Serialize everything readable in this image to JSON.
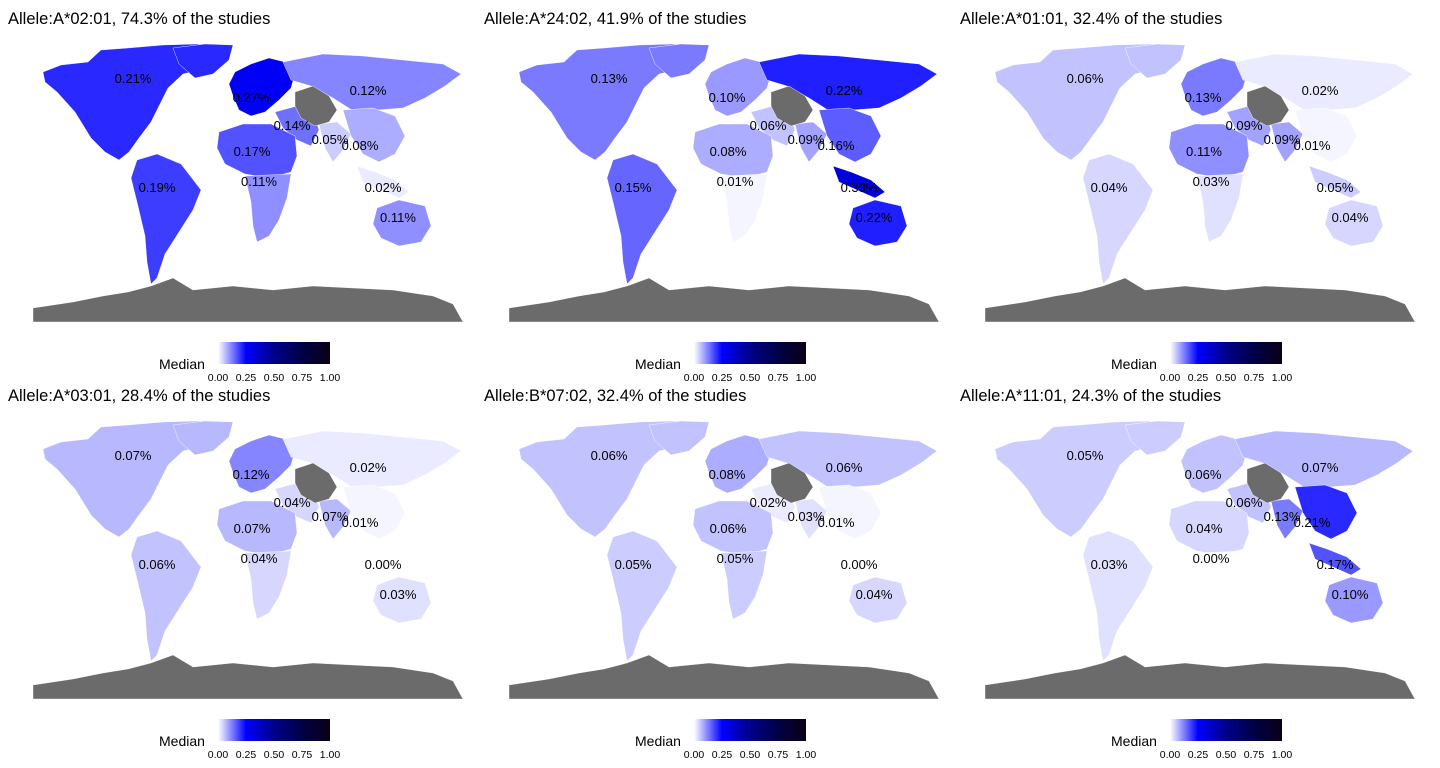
{
  "colors": {
    "scale": [
      "#ffffff",
      "#0000ff",
      "#00008b",
      "#000045",
      "#0b0016"
    ],
    "no_data": "#6b6b6b"
  },
  "legend": {
    "title": "Median",
    "ticks": [
      "0.00",
      "0.25",
      "0.50",
      "0.75",
      "1.00"
    ]
  },
  "panels": [
    {
      "title": "Allele:A*02:01, 74.3% of the studies",
      "regions": {
        "north_america": {
          "label": "0.21%",
          "value": 0.21
        },
        "south_america": {
          "label": "0.19%",
          "value": 0.19
        },
        "europe": {
          "label": "0.27%",
          "value": 0.27
        },
        "north_asia": {
          "label": "0.12%",
          "value": 0.12
        },
        "western_asia": {
          "label": "0.14%",
          "value": 0.14
        },
        "north_africa": {
          "label": "0.17%",
          "value": 0.17
        },
        "southern_africa": {
          "label": "0.11%",
          "value": 0.11
        },
        "south_asia": {
          "label": "0.05%",
          "value": 0.05
        },
        "east_asia": {
          "label": "0.08%",
          "value": 0.08
        },
        "southeast_asia": {
          "label": "0.02%",
          "value": 0.02
        },
        "oceania": {
          "label": "0.11%",
          "value": 0.11
        }
      }
    },
    {
      "title": "Allele:A*24:02, 41.9% of the studies",
      "regions": {
        "north_america": {
          "label": "0.13%",
          "value": 0.13
        },
        "south_america": {
          "label": "0.15%",
          "value": 0.15
        },
        "europe": {
          "label": "0.10%",
          "value": 0.1
        },
        "north_asia": {
          "label": "0.22%",
          "value": 0.22
        },
        "western_asia": {
          "label": "0.06%",
          "value": 0.06
        },
        "north_africa": {
          "label": "0.08%",
          "value": 0.08
        },
        "southern_africa": {
          "label": "0.01%",
          "value": 0.01
        },
        "south_asia": {
          "label": "0.09%",
          "value": 0.09
        },
        "east_asia": {
          "label": "0.16%",
          "value": 0.16
        },
        "southeast_asia": {
          "label": "0.33%",
          "value": 0.33
        },
        "oceania": {
          "label": "0.22%",
          "value": 0.22
        }
      }
    },
    {
      "title": "Allele:A*01:01, 32.4% of the studies",
      "regions": {
        "north_america": {
          "label": "0.06%",
          "value": 0.06
        },
        "south_america": {
          "label": "0.04%",
          "value": 0.04
        },
        "europe": {
          "label": "0.13%",
          "value": 0.13
        },
        "north_asia": {
          "label": "0.02%",
          "value": 0.02
        },
        "western_asia": {
          "label": "0.09%",
          "value": 0.09
        },
        "north_africa": {
          "label": "0.11%",
          "value": 0.11
        },
        "southern_africa": {
          "label": "0.03%",
          "value": 0.03
        },
        "south_asia": {
          "label": "0.09%",
          "value": 0.09
        },
        "east_asia": {
          "label": "0.01%",
          "value": 0.01
        },
        "southeast_asia": {
          "label": "0.05%",
          "value": 0.05
        },
        "oceania": {
          "label": "0.04%",
          "value": 0.04
        }
      }
    },
    {
      "title": "Allele:A*03:01, 28.4% of the studies",
      "regions": {
        "north_america": {
          "label": "0.07%",
          "value": 0.07
        },
        "south_america": {
          "label": "0.06%",
          "value": 0.06
        },
        "europe": {
          "label": "0.12%",
          "value": 0.12
        },
        "north_asia": {
          "label": "0.02%",
          "value": 0.02
        },
        "western_asia": {
          "label": "0.04%",
          "value": 0.04
        },
        "north_africa": {
          "label": "0.07%",
          "value": 0.07
        },
        "southern_africa": {
          "label": "0.04%",
          "value": 0.04
        },
        "south_asia": {
          "label": "0.07%",
          "value": 0.07
        },
        "east_asia": {
          "label": "0.01%",
          "value": 0.01
        },
        "southeast_asia": {
          "label": "0.00%",
          "value": 0.0
        },
        "oceania": {
          "label": "0.03%",
          "value": 0.03
        }
      }
    },
    {
      "title": "Allele:B*07:02, 32.4% of the studies",
      "regions": {
        "north_america": {
          "label": "0.06%",
          "value": 0.06
        },
        "south_america": {
          "label": "0.05%",
          "value": 0.05
        },
        "europe": {
          "label": "0.08%",
          "value": 0.08
        },
        "north_asia": {
          "label": "0.06%",
          "value": 0.06
        },
        "western_asia": {
          "label": "0.02%",
          "value": 0.02
        },
        "north_africa": {
          "label": "0.06%",
          "value": 0.06
        },
        "southern_africa": {
          "label": "0.05%",
          "value": 0.05
        },
        "south_asia": {
          "label": "0.03%",
          "value": 0.03
        },
        "east_asia": {
          "label": "0.01%",
          "value": 0.01
        },
        "southeast_asia": {
          "label": "0.00%",
          "value": 0.0
        },
        "oceania": {
          "label": "0.04%",
          "value": 0.04
        }
      }
    },
    {
      "title": "Allele:A*11:01, 24.3% of the studies",
      "regions": {
        "north_america": {
          "label": "0.05%",
          "value": 0.05
        },
        "south_america": {
          "label": "0.03%",
          "value": 0.03
        },
        "europe": {
          "label": "0.06%",
          "value": 0.06
        },
        "north_asia": {
          "label": "0.07%",
          "value": 0.07
        },
        "western_asia": {
          "label": "0.06%",
          "value": 0.06
        },
        "north_africa": {
          "label": "0.04%",
          "value": 0.04
        },
        "southern_africa": {
          "label": "0.00%",
          "value": 0.0
        },
        "south_asia": {
          "label": "0.13%",
          "value": 0.13
        },
        "east_asia": {
          "label": "0.21%",
          "value": 0.21
        },
        "southeast_asia": {
          "label": "0.17%",
          "value": 0.17
        },
        "oceania": {
          "label": "0.10%",
          "value": 0.1
        }
      }
    }
  ]
}
